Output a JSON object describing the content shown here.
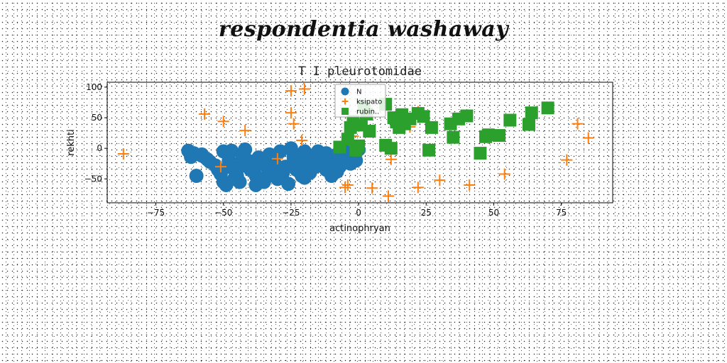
{
  "page_title": "respondentia washaway",
  "chart_data": {
    "type": "scatter",
    "title": "T I pleurotomidae",
    "xlabel": "actinophryan",
    "ylabel": "rekhti",
    "xlim": [
      -93,
      94
    ],
    "ylim": [
      -89,
      108
    ],
    "xticks": [
      -75,
      -50,
      -25,
      0,
      25,
      50,
      75
    ],
    "yticks": [
      -50,
      0,
      50,
      100
    ],
    "xtick_labels": [
      "−75",
      "−50",
      "−25",
      "0",
      "25",
      "50",
      "75"
    ],
    "ytick_labels": [
      "−50",
      "0",
      "50",
      "100"
    ],
    "grid": false,
    "legend_position": "top-center",
    "series": [
      {
        "name": "N",
        "marker": "circle",
        "color": "#1f77b4",
        "x": [
          -63,
          -61,
          -58,
          -56,
          -55,
          -53,
          -52,
          -51,
          -50,
          -49,
          -48,
          -47,
          -46,
          -45,
          -44,
          -43,
          -42,
          -41,
          -40,
          -38,
          -37,
          -36,
          -35,
          -34,
          -33,
          -32,
          -31,
          -30,
          -29,
          -27,
          -25,
          -24,
          -23,
          -22,
          -21,
          -20,
          -19,
          -18,
          -17,
          -16,
          -15,
          -14,
          -13,
          -12,
          -11,
          -10,
          -9,
          -8,
          -7,
          -6,
          -5,
          -4,
          -3,
          -2,
          -1,
          0,
          -60,
          -58,
          -50,
          -46,
          -44,
          -38,
          -34,
          -28,
          -24,
          -20,
          -16,
          -12,
          -8,
          -5,
          -62,
          -48,
          -36,
          -26,
          -18,
          -10
        ],
        "y": [
          -4,
          -8,
          -12,
          -18,
          -22,
          -28,
          -35,
          -42,
          -55,
          -60,
          -20,
          -4,
          -50,
          -45,
          -30,
          -15,
          -2,
          -20,
          -35,
          -45,
          -15,
          -25,
          -55,
          -30,
          -10,
          -40,
          -25,
          -50,
          -5,
          -30,
          0,
          -10,
          -35,
          -20,
          -45,
          -5,
          -25,
          -40,
          -15,
          -30,
          -5,
          -20,
          -10,
          -35,
          -15,
          -45,
          -25,
          -10,
          -30,
          -20,
          -5,
          -15,
          -25,
          -10,
          -20,
          -2,
          -45,
          -10,
          -5,
          -35,
          -55,
          -60,
          -20,
          -40,
          -15,
          -48,
          -30,
          -8,
          -38,
          -22,
          -14,
          -30,
          -50,
          -58,
          -12,
          -28
        ]
      },
      {
        "name": "ksipato",
        "marker": "plus",
        "color": "#ff7f0e",
        "x": [
          -87,
          -57,
          -50,
          -42,
          -30,
          -25,
          -25,
          -24,
          -21,
          -20,
          -5,
          -4,
          -2,
          5,
          11,
          12,
          19,
          22,
          22,
          30,
          41,
          47,
          54,
          77,
          81,
          85,
          -51
        ],
        "y": [
          -9,
          56,
          44,
          29,
          -17,
          94,
          58,
          40,
          13,
          97,
          -64,
          -60,
          20,
          -65,
          -78,
          -18,
          35,
          -64,
          60,
          -52,
          -60,
          20,
          -42,
          -19,
          40,
          17,
          -30
        ]
      },
      {
        "name": "rubin..",
        "marker": "square",
        "color": "#2ca02c",
        "x": [
          -7,
          -4,
          -3,
          -2,
          0,
          1,
          2,
          3,
          4,
          10,
          10,
          12,
          13,
          14,
          15,
          16,
          17,
          19,
          22,
          26,
          27,
          34,
          35,
          37,
          40,
          45,
          47,
          48,
          52,
          56,
          63,
          64,
          70,
          24,
          -1
        ],
        "y": [
          2,
          15,
          34,
          44,
          4,
          38,
          68,
          56,
          28,
          72,
          5,
          0,
          50,
          43,
          34,
          55,
          40,
          48,
          57,
          -3,
          34,
          40,
          18,
          48,
          53,
          -8,
          19,
          22,
          21,
          46,
          39,
          58,
          66,
          52,
          -3
        ]
      }
    ]
  }
}
